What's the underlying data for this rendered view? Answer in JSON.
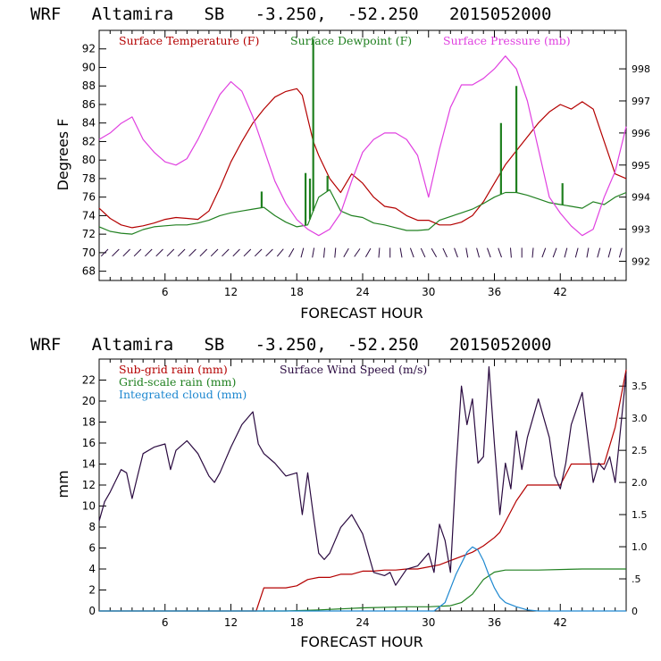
{
  "chart_data": [
    {
      "type": "line",
      "title": "WRF   Altamira   SB   -3.250,  -52.250   2015052000",
      "xlabel": "FORECAST HOUR",
      "ylabel": "Degrees F",
      "xlim": [
        0,
        48
      ],
      "ylim": [
        67,
        94
      ],
      "y2lim": [
        991.4,
        999.2
      ],
      "xticks": [
        "6",
        "12",
        "18",
        "24",
        "30",
        "36",
        "42"
      ],
      "yticks": [
        "68",
        "70",
        "72",
        "74",
        "76",
        "78",
        "80",
        "82",
        "84",
        "86",
        "88",
        "90",
        "92"
      ],
      "y2ticks": [
        "992",
        "993",
        "994",
        "995",
        "996",
        "997",
        "998"
      ],
      "legend": [
        "Surface Temperature (F)",
        "Surface Dewpoint (F)",
        "Surface Pressure (mb)"
      ],
      "colors": {
        "temperature": "#b40000",
        "dewpoint": "#208020",
        "pressure": "#e040e0",
        "barbs": "#2a0a40"
      },
      "series": [
        {
          "name": "Surface Temperature (F)",
          "axis": "left",
          "x": [
            0,
            1,
            2,
            3,
            4,
            5,
            6,
            7,
            8,
            9,
            10,
            11,
            12,
            13,
            14,
            15,
            16,
            17,
            18,
            18.5,
            19,
            19.5,
            20,
            21,
            22,
            23,
            24,
            25,
            26,
            27,
            28,
            29,
            30,
            31,
            32,
            33,
            34,
            35,
            36,
            37,
            38,
            39,
            40,
            41,
            42,
            43,
            44,
            45,
            46,
            47,
            48
          ],
          "y": [
            74.8,
            73.7,
            73.0,
            72.7,
            72.9,
            73.2,
            73.6,
            73.8,
            73.7,
            73.6,
            74.5,
            77.0,
            79.8,
            82.0,
            84.0,
            85.5,
            86.8,
            87.4,
            87.7,
            87.0,
            84.5,
            82.0,
            80.5,
            78.0,
            76.5,
            78.5,
            77.5,
            76.0,
            75.0,
            74.8,
            74.0,
            73.5,
            73.5,
            73.0,
            73.0,
            73.3,
            74.0,
            75.5,
            77.5,
            79.5,
            81.0,
            82.5,
            84.0,
            85.2,
            86.0,
            85.5,
            86.3,
            85.5,
            82.0,
            78.5,
            78.0
          ]
        },
        {
          "name": "Surface Dewpoint (F)",
          "axis": "left",
          "x": [
            0,
            1,
            2,
            3,
            4,
            5,
            6,
            7,
            8,
            9,
            10,
            11,
            12,
            13,
            14,
            15,
            16,
            17,
            18,
            19,
            20,
            21,
            22,
            23,
            24,
            25,
            26,
            27,
            28,
            29,
            30,
            31,
            32,
            33,
            34,
            35,
            36,
            37,
            38,
            39,
            40,
            41,
            42,
            43,
            44,
            45,
            46,
            47,
            48
          ],
          "y": [
            72.8,
            72.3,
            72.1,
            72.0,
            72.5,
            72.8,
            72.9,
            73.0,
            73.0,
            73.2,
            73.5,
            74.0,
            74.3,
            74.5,
            74.7,
            74.9,
            74.0,
            73.3,
            72.8,
            73.0,
            76.0,
            76.8,
            74.5,
            74.0,
            73.8,
            73.2,
            73.0,
            72.7,
            72.4,
            72.4,
            72.5,
            73.5,
            73.9,
            74.3,
            74.7,
            75.3,
            76.0,
            76.5,
            76.5,
            76.2,
            75.8,
            75.4,
            75.2,
            75.0,
            74.8,
            75.5,
            75.2,
            76.0,
            76.5
          ]
        },
        {
          "name": "Surface Pressure (mb)",
          "axis": "right",
          "x": [
            0,
            1,
            2,
            3,
            4,
            5,
            6,
            7,
            8,
            9,
            10,
            11,
            12,
            13,
            14,
            15,
            16,
            17,
            18,
            19,
            20,
            21,
            22,
            23,
            24,
            25,
            26,
            27,
            28,
            29,
            30,
            31,
            32,
            33,
            34,
            35,
            36,
            37,
            38,
            39,
            40,
            41,
            42,
            43,
            44,
            45,
            46,
            47,
            48
          ],
          "y": [
            995.8,
            996.0,
            996.3,
            996.5,
            995.8,
            995.4,
            995.1,
            995.0,
            995.2,
            995.8,
            996.5,
            997.2,
            997.6,
            997.3,
            996.5,
            995.5,
            994.5,
            993.8,
            993.3,
            993.0,
            992.8,
            993.0,
            993.5,
            994.5,
            995.4,
            995.8,
            996.0,
            996.0,
            995.8,
            995.3,
            994.0,
            995.5,
            996.8,
            997.5,
            997.5,
            997.7,
            998.0,
            998.4,
            998.0,
            997.0,
            995.5,
            994.0,
            993.5,
            993.1,
            992.8,
            993.0,
            994.0,
            994.8,
            996.2
          ]
        }
      ],
      "spikes_dewpoint": [
        {
          "x": 14.8,
          "y": 76.6
        },
        {
          "x": 18.8,
          "y": 78.6
        },
        {
          "x": 19.2,
          "y": 78.0
        },
        {
          "x": 19.5,
          "y": 93.0
        },
        {
          "x": 20.8,
          "y": 78.3
        },
        {
          "x": 36.6,
          "y": 84.0
        },
        {
          "x": 38.0,
          "y": 88.0
        },
        {
          "x": 42.2,
          "y": 77.5
        }
      ],
      "wind_barbs": {
        "y": 70,
        "directions_deg": [
          45,
          45,
          45,
          45,
          45,
          45,
          45,
          45,
          45,
          45,
          45,
          45,
          45,
          45,
          45,
          45,
          50,
          60,
          75,
          80,
          85,
          85,
          60,
          55,
          60,
          85,
          90,
          100,
          110,
          115,
          120,
          115,
          110,
          100,
          105,
          110,
          110,
          95,
          90,
          85,
          70,
          70,
          75,
          75,
          80,
          75,
          75,
          75
        ]
      }
    },
    {
      "type": "line",
      "title": "WRF   Altamira   SB   -3.250,  -52.250   2015052000",
      "xlabel": "FORECAST HOUR",
      "ylabel": "mm",
      "xlim": [
        0,
        48
      ],
      "ylim": [
        0,
        24
      ],
      "y2lim": [
        0,
        3.92
      ],
      "xticks": [
        "6",
        "12",
        "18",
        "24",
        "30",
        "36",
        "42"
      ],
      "yticks": [
        "0",
        "2",
        "4",
        "6",
        "8",
        "10",
        "12",
        "14",
        "16",
        "18",
        "20",
        "22"
      ],
      "y2ticks": [
        "0",
        ".5",
        "1.0",
        "1.5",
        "2.0",
        "2.5",
        "3.0",
        "3.5"
      ],
      "legend": [
        "Sub-grid rain (mm)",
        "Surface Wind Speed (m/s)",
        "Grid-scale rain (mm)",
        "Integrated cloud (mm)"
      ],
      "colors": {
        "subgrid": "#b40000",
        "wind": "#2a0a40",
        "gridscale": "#208020",
        "cloud": "#1e88d0"
      },
      "series": [
        {
          "name": "Sub-grid rain (mm)",
          "axis": "left",
          "x": [
            0,
            14.3,
            15,
            16,
            17,
            18,
            19,
            20,
            21,
            22,
            23,
            24,
            25,
            26,
            27,
            28,
            29,
            30,
            31,
            32,
            33,
            34,
            35,
            36,
            36.5,
            37,
            38,
            39,
            40,
            41,
            42,
            43,
            44,
            45,
            46,
            47,
            48
          ],
          "y": [
            0,
            0,
            2.2,
            2.2,
            2.2,
            2.4,
            3.0,
            3.2,
            3.2,
            3.5,
            3.5,
            3.8,
            3.8,
            3.9,
            3.9,
            4.0,
            4.0,
            4.2,
            4.4,
            4.8,
            5.2,
            5.6,
            6.2,
            7.0,
            7.5,
            8.5,
            10.5,
            12.0,
            12.0,
            12.0,
            12.0,
            14.0,
            14.0,
            14.0,
            14.0,
            17.5,
            23.0
          ]
        },
        {
          "name": "Grid-scale rain (mm)",
          "axis": "left",
          "x": [
            0,
            17,
            20,
            24,
            28,
            30,
            32,
            33,
            34,
            35,
            36,
            37,
            38,
            40,
            44,
            48
          ],
          "y": [
            0,
            0,
            0.1,
            0.3,
            0.4,
            0.4,
            0.5,
            0.8,
            1.6,
            3.0,
            3.7,
            3.9,
            3.9,
            3.9,
            4.0,
            4.0
          ]
        },
        {
          "name": "Integrated cloud (mm)",
          "axis": "left",
          "x": [
            0,
            30.5,
            31.5,
            32.5,
            33.5,
            34.0,
            34.5,
            35.0,
            35.5,
            36.0,
            36.5,
            37.0,
            38.0,
            39.0,
            40.0,
            48
          ],
          "y": [
            0,
            0,
            0.8,
            3.5,
            5.6,
            6.1,
            5.8,
            4.8,
            3.4,
            2.2,
            1.3,
            0.8,
            0.4,
            0.1,
            0,
            0
          ]
        },
        {
          "name": "Surface Wind Speed (m/s)",
          "axis": "right",
          "x": [
            0,
            0.5,
            1,
            2,
            2.5,
            3,
            3.5,
            4,
            5,
            6,
            6.5,
            7,
            8,
            9,
            10,
            10.5,
            11,
            12,
            13,
            14,
            14.5,
            15,
            16,
            17,
            18,
            18.5,
            19,
            19.5,
            20,
            20.5,
            21,
            22,
            23,
            24,
            25,
            26,
            26.5,
            27,
            28,
            29,
            30,
            30.5,
            31,
            31.5,
            32,
            32.5,
            33,
            33.5,
            34,
            34.5,
            35,
            35.5,
            36,
            36.5,
            37,
            37.5,
            38,
            38.5,
            39,
            40,
            41,
            41.5,
            42,
            42.5,
            43,
            44,
            45,
            45.5,
            46,
            46.5,
            47,
            48
          ],
          "y": [
            1.4,
            1.7,
            1.85,
            2.2,
            2.15,
            1.75,
            2.1,
            2.45,
            2.55,
            2.6,
            2.2,
            2.5,
            2.65,
            2.45,
            2.1,
            2.0,
            2.15,
            2.55,
            2.9,
            3.1,
            2.6,
            2.45,
            2.3,
            2.1,
            2.15,
            1.5,
            2.15,
            1.5,
            0.9,
            0.8,
            0.9,
            1.3,
            1.5,
            1.2,
            0.6,
            0.55,
            0.6,
            0.4,
            0.65,
            0.7,
            0.9,
            0.6,
            1.35,
            1.1,
            0.6,
            2.2,
            3.5,
            2.9,
            3.3,
            2.3,
            2.4,
            3.8,
            2.6,
            1.5,
            2.3,
            1.9,
            2.8,
            2.2,
            2.7,
            3.3,
            2.7,
            2.1,
            1.9,
            2.3,
            2.9,
            3.4,
            2.0,
            2.3,
            2.2,
            2.4,
            2.0,
            3.7
          ]
        }
      ]
    }
  ]
}
